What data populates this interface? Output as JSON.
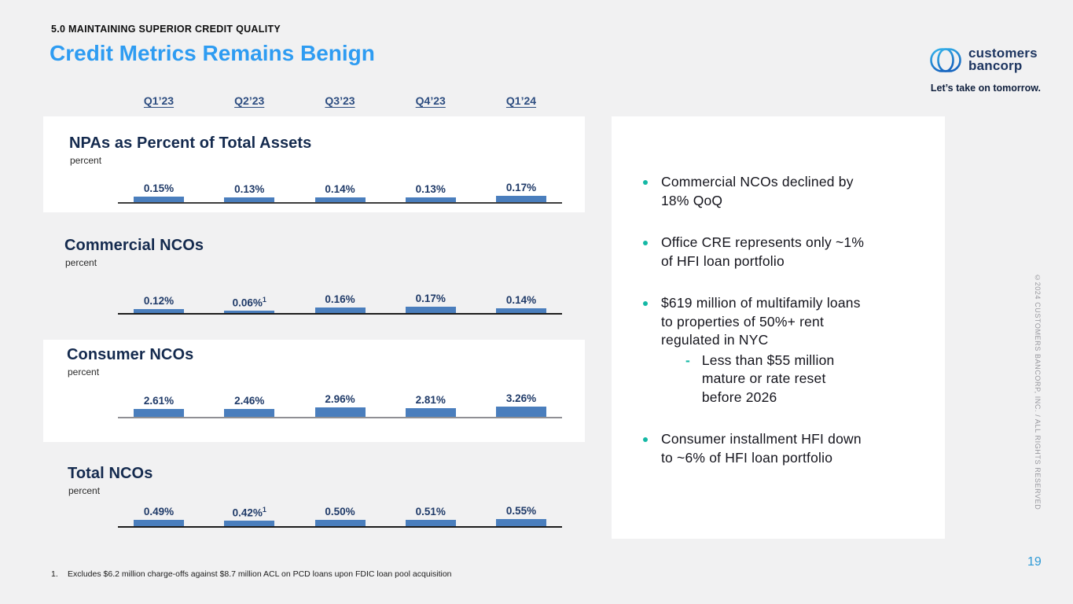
{
  "slide": {
    "eyebrow": "5.0 MAINTAINING SUPERIOR CREDIT QUALITY",
    "title": "Credit Metrics Remains Benign",
    "page_number": "19",
    "copyright": "©2024 CUSTOMERS BANCORP, INC. / ALL RIGHTS RESERVED",
    "footnote": {
      "marker": "1.",
      "text": "Excludes $6.2 million charge-offs against $8.7 million ACL on PCD loans upon FDIC loan pool acquisition"
    }
  },
  "brand": {
    "logo_icon": "customers-bancorp-mark",
    "logo_line1": "customers",
    "logo_line2": "bancorp",
    "tagline": "Let’s take on tomorrow."
  },
  "quarters": [
    "Q1’23",
    "Q2’23",
    "Q3’23",
    "Q4’23",
    "Q1’24"
  ],
  "chart_data": [
    {
      "type": "bar",
      "slug": "npas-percent-of-total-assets",
      "title": "NPAs as Percent of Total Assets",
      "ylabel": "percent",
      "categories": [
        "Q1’23",
        "Q2’23",
        "Q3’23",
        "Q4’23",
        "Q1’24"
      ],
      "values": [
        0.15,
        0.13,
        0.14,
        0.13,
        0.17
      ],
      "value_labels": [
        "0.15%",
        "0.13%",
        "0.14%",
        "0.13%",
        "0.17%"
      ],
      "footnote_sups": [
        "",
        "",
        "",
        "",
        ""
      ],
      "unit": "%"
    },
    {
      "type": "bar",
      "slug": "commercial-ncos",
      "title": "Commercial NCOs",
      "ylabel": "percent",
      "categories": [
        "Q1’23",
        "Q2’23",
        "Q3’23",
        "Q4’23",
        "Q1’24"
      ],
      "values": [
        0.12,
        0.06,
        0.16,
        0.17,
        0.14
      ],
      "value_labels": [
        "0.12%",
        "0.06%",
        "0.16%",
        "0.17%",
        "0.14%"
      ],
      "footnote_sups": [
        "",
        "1",
        "",
        "",
        ""
      ],
      "unit": "%"
    },
    {
      "type": "bar",
      "slug": "consumer-ncos",
      "title": "Consumer NCOs",
      "ylabel": "percent",
      "categories": [
        "Q1’23",
        "Q2’23",
        "Q3’23",
        "Q4’23",
        "Q1’24"
      ],
      "values": [
        2.61,
        2.46,
        2.96,
        2.81,
        3.26
      ],
      "value_labels": [
        "2.61%",
        "2.46%",
        "2.96%",
        "2.81%",
        "3.26%"
      ],
      "footnote_sups": [
        "",
        "",
        "",
        "",
        ""
      ],
      "unit": "%"
    },
    {
      "type": "bar",
      "slug": "total-ncos",
      "title": "Total NCOs",
      "ylabel": "percent",
      "categories": [
        "Q1’23",
        "Q2’23",
        "Q3’23",
        "Q4’23",
        "Q1’24"
      ],
      "values": [
        0.49,
        0.42,
        0.5,
        0.51,
        0.55
      ],
      "value_labels": [
        "0.49%",
        "0.42%",
        "0.50%",
        "0.51%",
        "0.55%"
      ],
      "footnote_sups": [
        "",
        "1",
        "",
        "",
        ""
      ],
      "unit": "%"
    }
  ],
  "commentary": {
    "bullets": [
      {
        "lines": [
          "Commercial NCOs declined by",
          "18% QoQ"
        ],
        "sub": []
      },
      {
        "lines": [
          "Office CRE represents only ~1%",
          "of HFI loan portfolio"
        ],
        "sub": []
      },
      {
        "lines": [
          "$619 million of multifamily loans",
          "to properties of 50%+ rent",
          "regulated in NYC"
        ],
        "sub": [
          {
            "lines": [
              "Less than $55 million",
              "mature or rate reset",
              "before 2026"
            ]
          }
        ]
      },
      {
        "lines": [
          "Consumer installment HFI down",
          "to ~6% of HFI loan portfolio"
        ],
        "sub": []
      }
    ]
  },
  "colors": {
    "background_gray": "#F1F1F2",
    "panel_white": "#FFFFFF",
    "title_blue": "#2E9CF2",
    "bar_blue": "#4A7EBD",
    "value_label_navy": "#1F3A68",
    "chart_title_navy": "#142A4E",
    "quarter_header_navy": "#2D4D80",
    "bullet_teal": "#14B8A5",
    "page_number_blue": "#2F9AD6",
    "brand_navy": "#1D3560",
    "logo_light_blue": "#35B5EC",
    "logo_dark_blue": "#1766C0"
  }
}
